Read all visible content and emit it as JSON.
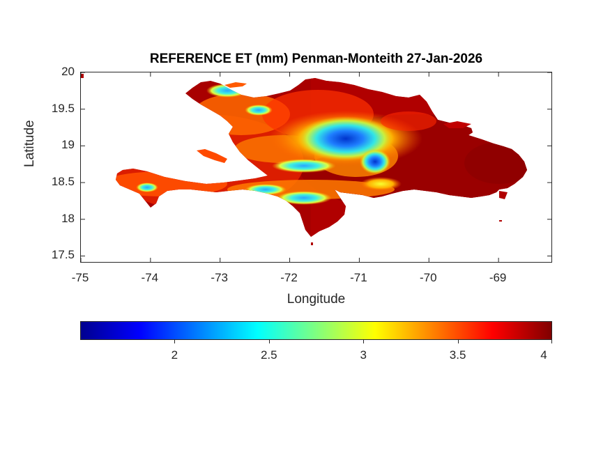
{
  "chart_data": {
    "type": "heatmap",
    "title": "REFERENCE ET (mm) Penman-Monteith 27-Jan-2026",
    "xlabel": "Longitude",
    "ylabel": "Latitude",
    "xlim": [
      -75,
      -68.22
    ],
    "ylim": [
      17.4,
      20
    ],
    "xticks": [
      -75,
      -74,
      -73,
      -72,
      -71,
      -70,
      -69
    ],
    "xtick_labels": [
      "-75",
      "-74",
      "-73",
      "-72",
      "-71",
      "-70",
      "-69"
    ],
    "yticks": [
      17.5,
      18,
      18.5,
      19,
      19.5,
      20
    ],
    "ytick_labels": [
      "17.5",
      "18",
      "18.5",
      "19",
      "19.5",
      "20"
    ],
    "colormap": "jet",
    "colorbar": {
      "orientation": "horizontal",
      "placement": "below",
      "range": [
        1.5,
        4
      ],
      "ticks": [
        2,
        2.5,
        3,
        3.5,
        4
      ],
      "tick_labels": [
        "2",
        "2.5",
        "3",
        "3.5",
        "4"
      ]
    },
    "region": "Hispaniola (Haiti and Dominican Republic)",
    "grid": false
  }
}
